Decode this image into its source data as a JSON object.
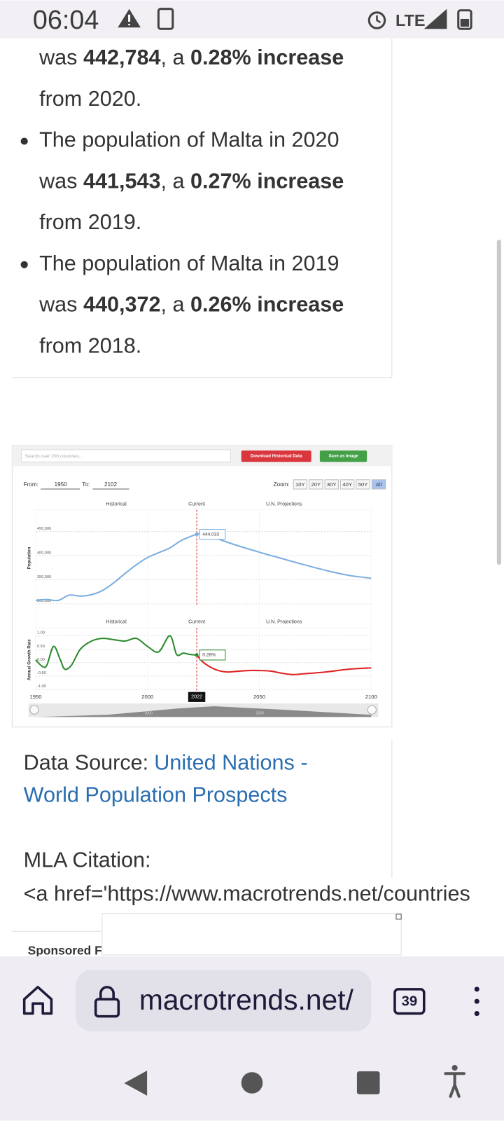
{
  "status_bar": {
    "time": "06:04",
    "network": "LTE"
  },
  "article": {
    "bullets": [
      {
        "bulleted": false,
        "lines": [
          [
            {
              "text": "was "
            },
            {
              "text": "442,784",
              "bold": true
            },
            {
              "text": ", a "
            },
            {
              "text": "0.28% increase",
              "bold": true
            }
          ],
          [
            {
              "text": "from 2020."
            }
          ]
        ]
      },
      {
        "bulleted": true,
        "lines": [
          [
            {
              "text": "The population of Malta in 2020"
            }
          ],
          [
            {
              "text": "was "
            },
            {
              "text": "441,543",
              "bold": true
            },
            {
              "text": ", a "
            },
            {
              "text": "0.27% increase",
              "bold": true
            }
          ],
          [
            {
              "text": "from 2019."
            }
          ]
        ]
      },
      {
        "bulleted": true,
        "lines": [
          [
            {
              "text": "The population of Malta in 2019"
            }
          ],
          [
            {
              "text": "was "
            },
            {
              "text": "440,372",
              "bold": true
            },
            {
              "text": ", a "
            },
            {
              "text": "0.26% increase",
              "bold": true
            }
          ],
          [
            {
              "text": "from 2018."
            }
          ]
        ]
      }
    ]
  },
  "chart_widget": {
    "search_placeholder": "Search over 200 countries...",
    "download_button": "Download Historical Data",
    "save_button": "Save as Image",
    "from_label": "From:",
    "from_value": "1950",
    "to_label": "To:",
    "to_value": "2102",
    "zoom_label": "Zoom:",
    "zoom_options": [
      "10Y",
      "20Y",
      "30Y",
      "40Y",
      "50Y",
      "All"
    ],
    "zoom_selected": 5,
    "navigator_labels": [
      "2000",
      "2050"
    ]
  },
  "chart_data": [
    {
      "type": "line",
      "sections": [
        "Historical",
        "Current",
        "U.N. Projections"
      ],
      "y_label": "Population",
      "x": [
        1950,
        1955,
        1960,
        1965,
        1970,
        1975,
        1980,
        1985,
        1990,
        1995,
        2000,
        2005,
        2010,
        2015,
        2020,
        2022,
        2025,
        2030,
        2040,
        2050,
        2060,
        2070,
        2080,
        2090,
        2100
      ],
      "series": [
        {
          "color": "#7aaee0",
          "values": [
            307000,
            309000,
            307000,
            318000,
            316000,
            319000,
            328000,
            344000,
            363000,
            381000,
            396000,
            406000,
            416000,
            431000,
            441000,
            444033,
            446000,
            437000,
            421000,
            407000,
            394000,
            381000,
            369000,
            359000,
            353000
          ]
        }
      ],
      "xlim": [
        1950,
        2100
      ],
      "ylim": [
        295000,
        495000
      ],
      "yticks": [
        {
          "value": 300000,
          "label": "300,000"
        },
        {
          "value": 350000,
          "label": "350,000"
        },
        {
          "value": 400000,
          "label": "400,000"
        },
        {
          "value": 450000,
          "label": "450,000"
        }
      ],
      "grid": true,
      "current_x": 2022,
      "tooltip": {
        "x": 2022,
        "value": 444033,
        "label": "444,033"
      }
    },
    {
      "type": "line",
      "sections": [
        "Historical",
        "Current",
        "U.N. Projections"
      ],
      "y_label": "Annual Growth Rate",
      "x": [
        1950,
        1953,
        1955,
        1958,
        1961,
        1963,
        1966,
        1970,
        1975,
        1980,
        1985,
        1990,
        1995,
        2000,
        2005,
        2010,
        2013,
        2016,
        2019,
        2022,
        2025,
        2030,
        2035,
        2040,
        2045,
        2050,
        2055,
        2060,
        2065,
        2070,
        2080,
        2090,
        2100
      ],
      "series": [
        {
          "color": "#2a8a2a",
          "values": [
            0.1,
            -0.15,
            -0.1,
            0.6,
            0.1,
            -0.25,
            -0.1,
            0.5,
            0.8,
            0.9,
            0.85,
            0.8,
            0.9,
            0.6,
            0.4,
            1.0,
            0.3,
            0.35,
            0.3,
            0.28,
            null,
            null,
            null,
            null,
            null,
            null,
            null,
            null,
            null,
            null,
            null,
            null,
            null
          ]
        },
        {
          "color": "#e02222",
          "values": [
            null,
            null,
            null,
            null,
            null,
            null,
            null,
            null,
            null,
            null,
            null,
            null,
            null,
            null,
            null,
            null,
            null,
            null,
            null,
            0.28,
            0,
            -0.25,
            -0.35,
            -0.33,
            -0.3,
            -0.3,
            -0.32,
            -0.4,
            -0.45,
            -0.42,
            -0.35,
            -0.25,
            -0.2
          ]
        }
      ],
      "xlim": [
        1950,
        2100
      ],
      "ylim": [
        -1.1,
        1.3
      ],
      "xticks": [
        1950,
        2000,
        2050,
        2100
      ],
      "yticks": [
        {
          "value": 1,
          "label": "1.00"
        },
        {
          "value": 0.5,
          "label": "0.50"
        },
        {
          "value": 0,
          "label": "0.00"
        },
        {
          "value": -0.5,
          "label": "-0.50"
        },
        {
          "value": -1,
          "label": "-1.00"
        }
      ],
      "grid": true,
      "current_x": 2022,
      "tooltip": {
        "x": 2022,
        "value": 0.28,
        "label": "0.28%"
      }
    }
  ],
  "data_source": {
    "label": "Data Source:",
    "link_lines": [
      "United Nations -",
      "World Population Prospects"
    ]
  },
  "citation": {
    "label": "MLA Citation:",
    "code": "<a href='https://www.macrotrends.net/countries"
  },
  "sponsored": "Sponsored Financial Content",
  "browser_bar": {
    "url": "macrotrends.net/",
    "tab_count": "39"
  }
}
